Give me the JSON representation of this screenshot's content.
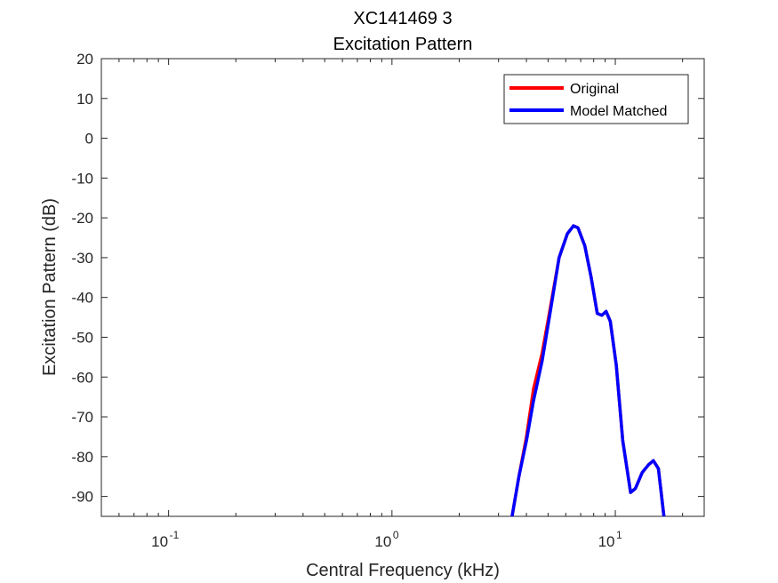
{
  "chart_data": {
    "type": "line",
    "title": "XC141469 3",
    "subtitle": "Excitation Pattern",
    "xlabel": "Central Frequency (kHz)",
    "ylabel": "Excitation Pattern (dB)",
    "xscale": "log",
    "xlim": [
      0.05,
      25
    ],
    "ylim": [
      -95,
      20
    ],
    "xticks": [
      {
        "value": 0.1,
        "base": "10",
        "exp": "-1"
      },
      {
        "value": 1,
        "base": "10",
        "exp": "0"
      },
      {
        "value": 10,
        "base": "10",
        "exp": "1"
      }
    ],
    "yticks": [
      "20",
      "10",
      "0",
      "-10",
      "-20",
      "-30",
      "-40",
      "-50",
      "-60",
      "-70",
      "-80",
      "-90"
    ],
    "grid": false,
    "legend_position": "top-right",
    "series": [
      {
        "name": "Original",
        "color": "#ff0000",
        "x": [
          3.45,
          3.7,
          4.0,
          4.3,
          4.7,
          5.1,
          5.6,
          6.1,
          6.5,
          6.8,
          7.3,
          7.8,
          8.3,
          8.7,
          9.1,
          9.5,
          10.1,
          10.8,
          11.7,
          12.3,
          13.2,
          14.1,
          14.8,
          15.6,
          16.5
        ],
        "y": [
          -95,
          -85,
          -75,
          -63,
          -54,
          -43,
          -30,
          -24,
          -22,
          -22.5,
          -27,
          -35,
          -44,
          -44.5,
          -43.5,
          -46,
          -57,
          -76,
          -89,
          -88,
          -84,
          -82,
          -81,
          -83,
          -95
        ]
      },
      {
        "name": "Model Matched",
        "color": "#0000ff",
        "x": [
          3.45,
          3.7,
          4.0,
          4.3,
          4.7,
          5.1,
          5.6,
          6.1,
          6.5,
          6.8,
          7.3,
          7.8,
          8.3,
          8.7,
          9.1,
          9.5,
          10.1,
          10.8,
          11.7,
          12.3,
          13.2,
          14.1,
          14.8,
          15.6,
          16.5
        ],
        "y": [
          -95,
          -85,
          -76,
          -66,
          -56,
          -44,
          -30,
          -24,
          -22,
          -22.5,
          -27,
          -35,
          -44,
          -44.5,
          -43.5,
          -46,
          -57,
          -76,
          -89,
          -88,
          -84,
          -82,
          -81,
          -83,
          -95
        ]
      }
    ]
  }
}
